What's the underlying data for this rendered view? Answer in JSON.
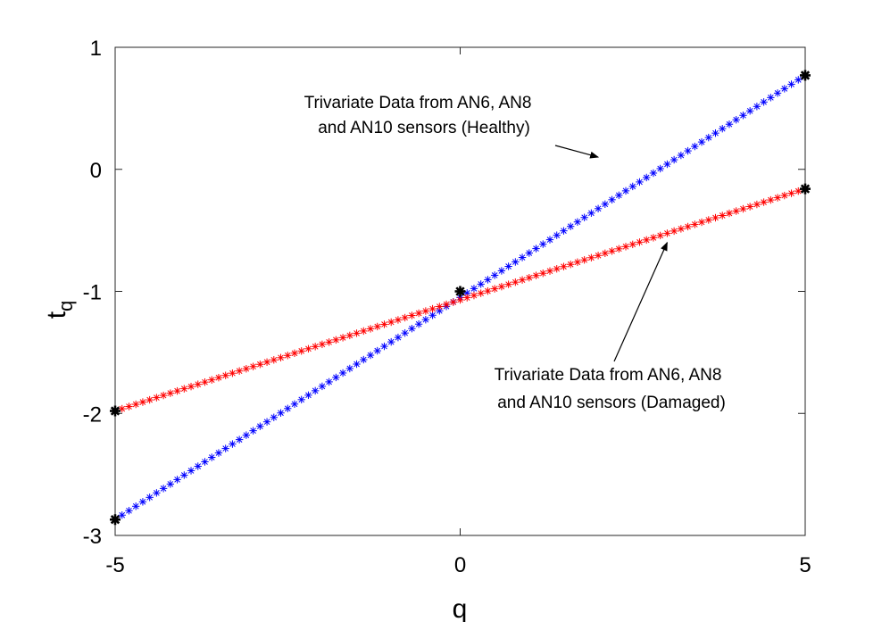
{
  "chart_data": {
    "type": "scatter",
    "title": "",
    "xlabel": "q",
    "ylabel_main": "t",
    "ylabel_sub": "q",
    "xlim": [
      -5,
      5
    ],
    "ylim": [
      -3,
      1
    ],
    "xticks": [
      -5,
      0,
      5
    ],
    "xtick_labels": [
      "-5",
      "0",
      "5"
    ],
    "yticks": [
      -3,
      -2,
      -1,
      0,
      1
    ],
    "ytick_labels": [
      "-3",
      "-2",
      "-1",
      "0",
      "1"
    ],
    "grid": false,
    "legend": "none",
    "marker": "asterisk",
    "points_per_series": 101,
    "series": [
      {
        "color": "#0000ff",
        "x_start": -5,
        "x_end": 5,
        "y_start": -2.87,
        "y_end": 0.77
      },
      {
        "color": "#ff0000",
        "x_start": -5,
        "x_end": 5,
        "y_start": -1.98,
        "y_end": -0.16
      }
    ],
    "endpoints": {
      "color": "#000000",
      "points": [
        {
          "x": -5,
          "y": -2.87
        },
        {
          "x": -5,
          "y": -1.98
        },
        {
          "x": 0,
          "y": -1.0
        },
        {
          "x": 5,
          "y": 0.77
        },
        {
          "x": 5,
          "y": -0.16
        }
      ]
    },
    "annotations": [
      {
        "lines": [
          "Trivariate Data from AN6, AN8",
          "and AN10 sensors (Healthy)"
        ],
        "arrow_to": {
          "x": 2.0,
          "y": 0.1
        }
      },
      {
        "lines": [
          "Trivariate Data from AN6, AN8",
          "and AN10 sensors (Damaged)"
        ],
        "arrow_to": {
          "x": 3.0,
          "y": -0.6
        }
      }
    ]
  }
}
